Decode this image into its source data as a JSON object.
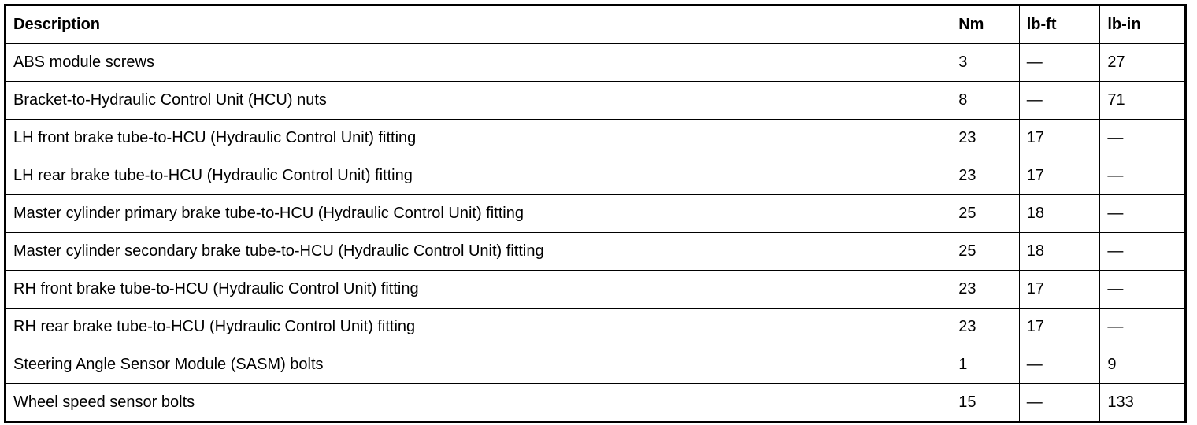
{
  "table": {
    "headers": [
      "Description",
      "Nm",
      "lb-ft",
      "lb-in"
    ],
    "rows": [
      [
        "ABS module screws",
        "3",
        "—",
        "27"
      ],
      [
        "Bracket-to-Hydraulic Control Unit (HCU) nuts",
        "8",
        "—",
        "71"
      ],
      [
        "LH front brake tube-to-HCU (Hydraulic Control Unit) fitting",
        "23",
        "17",
        "—"
      ],
      [
        "LH rear brake tube-to-HCU (Hydraulic Control Unit) fitting",
        "23",
        "17",
        "—"
      ],
      [
        "Master cylinder primary brake tube-to-HCU (Hydraulic Control Unit) fitting",
        "25",
        "18",
        "—"
      ],
      [
        "Master cylinder secondary brake tube-to-HCU (Hydraulic Control Unit) fitting",
        "25",
        "18",
        "—"
      ],
      [
        "RH front brake tube-to-HCU (Hydraulic Control Unit) fitting",
        "23",
        "17",
        "—"
      ],
      [
        "RH rear brake tube-to-HCU (Hydraulic Control Unit) fitting",
        "23",
        "17",
        "—"
      ],
      [
        "Steering Angle Sensor Module (SASM) bolts",
        "1",
        "—",
        "9"
      ],
      [
        "Wheel speed sensor bolts",
        "15",
        "—",
        "133"
      ]
    ]
  }
}
